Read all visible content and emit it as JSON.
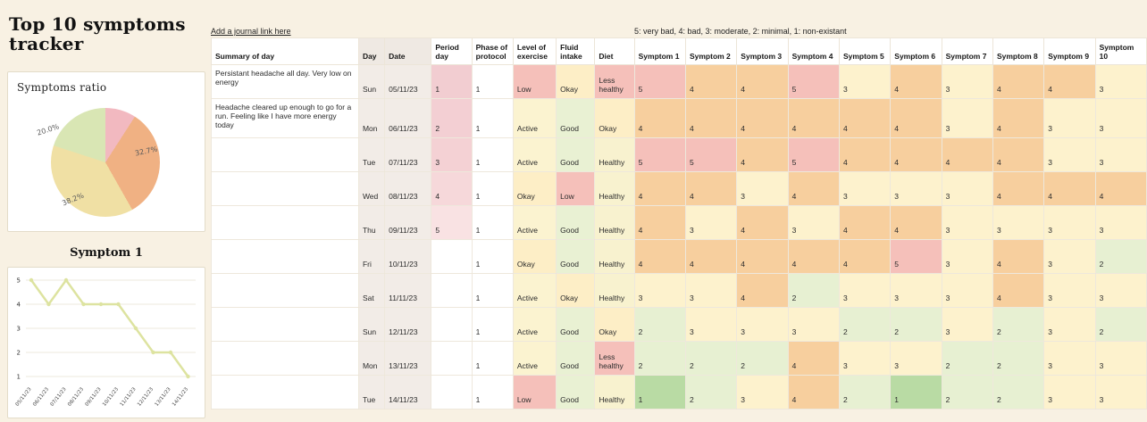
{
  "page": {
    "title": "Top 10 symptoms tracker",
    "journal_link": "Add a journal link here",
    "legend": "5: very bad, 4: bad, 3: moderate, 2: minimal, 1: non-existant"
  },
  "pie": {
    "title": "Symptoms ratio",
    "chart_data": {
      "type": "pie",
      "slices": [
        {
          "label": "",
          "value": 9.1,
          "color": "#f2b9c0"
        },
        {
          "label": "32.7%",
          "value": 32.7,
          "color": "#f0b183"
        },
        {
          "label": "38.2%",
          "value": 38.2,
          "color": "#f0e0a4"
        },
        {
          "label": "20.0%",
          "value": 20.0,
          "color": "#d9e6b4"
        }
      ]
    }
  },
  "line": {
    "title": "Symptom 1",
    "chart_data": {
      "type": "line",
      "x": [
        "05/11/23",
        "06/11/23",
        "07/11/23",
        "08/11/23",
        "09/11/23",
        "10/11/23",
        "11/11/23",
        "12/11/23",
        "13/11/23",
        "14/11/23"
      ],
      "values": [
        5,
        4,
        5,
        4,
        4,
        4,
        3,
        2,
        2,
        1
      ],
      "ylim": [
        1,
        5
      ],
      "yticks": [
        5,
        4,
        3,
        2,
        1
      ],
      "line_color": "#dde3a0",
      "grid": true,
      "legend_position": "none"
    }
  },
  "table": {
    "headers": [
      "Summary of day",
      "Day",
      "Date",
      "Period day",
      "Phase of protocol",
      "Level of exercise",
      "Fluid intake",
      "Diet",
      "Symptom 1",
      "Symptom 2",
      "Symptom 3",
      "Symptom 4",
      "Symptom 5",
      "Symptom 6",
      "Symptom 7",
      "Symptom 8",
      "Symptom 9",
      "Symptom 10"
    ],
    "rows": [
      {
        "summary": "Persistant headache all day. Very low on energy",
        "day": "Sun",
        "date": "05/11/23",
        "period": "1",
        "phase": "1",
        "exercise": "Low",
        "fluid": "Okay",
        "diet": "Less healthy",
        "symptoms": [
          5,
          4,
          4,
          5,
          3,
          4,
          3,
          4,
          4,
          3
        ]
      },
      {
        "summary": "Headache cleared up enough to go for a run. Feeling like I have more energy today",
        "day": "Mon",
        "date": "06/11/23",
        "period": "2",
        "phase": "1",
        "exercise": "Active",
        "fluid": "Good",
        "diet": "Okay",
        "symptoms": [
          4,
          4,
          4,
          4,
          4,
          4,
          3,
          4,
          3,
          3
        ]
      },
      {
        "summary": "",
        "day": "Tue",
        "date": "07/11/23",
        "period": "3",
        "phase": "1",
        "exercise": "Active",
        "fluid": "Good",
        "diet": "Healthy",
        "symptoms": [
          5,
          5,
          4,
          5,
          4,
          4,
          4,
          4,
          3,
          3
        ]
      },
      {
        "summary": "",
        "day": "Wed",
        "date": "08/11/23",
        "period": "4",
        "phase": "1",
        "exercise": "Okay",
        "fluid": "Low",
        "diet": "Healthy",
        "symptoms": [
          4,
          4,
          3,
          4,
          3,
          3,
          3,
          4,
          4,
          4
        ]
      },
      {
        "summary": "",
        "day": "Thu",
        "date": "09/11/23",
        "period": "5",
        "phase": "1",
        "exercise": "Active",
        "fluid": "Good",
        "diet": "Healthy",
        "symptoms": [
          4,
          3,
          4,
          3,
          4,
          4,
          3,
          3,
          3,
          3
        ]
      },
      {
        "summary": "",
        "day": "Fri",
        "date": "10/11/23",
        "period": "",
        "phase": "1",
        "exercise": "Okay",
        "fluid": "Good",
        "diet": "Healthy",
        "symptoms": [
          4,
          4,
          4,
          4,
          4,
          5,
          3,
          4,
          3,
          2
        ]
      },
      {
        "summary": "",
        "day": "Sat",
        "date": "11/11/23",
        "period": "",
        "phase": "1",
        "exercise": "Active",
        "fluid": "Okay",
        "diet": "Healthy",
        "symptoms": [
          3,
          3,
          4,
          2,
          3,
          3,
          3,
          4,
          3,
          3
        ]
      },
      {
        "summary": "",
        "day": "Sun",
        "date": "12/11/23",
        "period": "",
        "phase": "1",
        "exercise": "Active",
        "fluid": "Good",
        "diet": "Okay",
        "symptoms": [
          2,
          3,
          3,
          3,
          2,
          2,
          3,
          2,
          3,
          2
        ]
      },
      {
        "summary": "",
        "day": "Mon",
        "date": "13/11/23",
        "period": "",
        "phase": "1",
        "exercise": "Active",
        "fluid": "Good",
        "diet": "Less healthy",
        "symptoms": [
          2,
          2,
          2,
          4,
          3,
          3,
          2,
          2,
          3,
          3
        ]
      },
      {
        "summary": "",
        "day": "Tue",
        "date": "14/11/23",
        "period": "",
        "phase": "1",
        "exercise": "Low",
        "fluid": "Good",
        "diet": "Healthy",
        "symptoms": [
          1,
          2,
          3,
          4,
          2,
          1,
          2,
          2,
          3,
          3
        ]
      }
    ]
  },
  "colors": {
    "values": {
      "1": "#b9dba4",
      "2": "#e7f0d2",
      "3": "#fdf2cd",
      "4": "#f7cf9e",
      "5": "#f5c0ba"
    },
    "period_shades": {
      "1": "#f2cdd1",
      "2": "#f3cfd3",
      "3": "#f4d1d4",
      "4": "#f6d8da",
      "5": "#f9e2e3"
    },
    "labels": {
      "Low": "#f5c0ba",
      "Okay": "#fdeec6",
      "Active": "#fbf3d0",
      "Good": "#e9f1d3",
      "Healthy": "#f8f2cf",
      "Less healthy": "#f5c0ba"
    }
  }
}
